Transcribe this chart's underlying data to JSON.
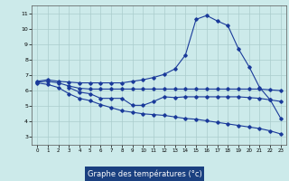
{
  "title": "Graphe des températures (°c)",
  "bg_color": "#cceaea",
  "grid_color": "#aacccc",
  "line_color": "#1a3a9a",
  "label_bg": "#1a4080",
  "label_fg": "#ffffff",
  "xlim": [
    -0.5,
    23.5
  ],
  "ylim": [
    2.5,
    11.5
  ],
  "xticks": [
    0,
    1,
    2,
    3,
    4,
    5,
    6,
    7,
    8,
    9,
    10,
    11,
    12,
    13,
    14,
    15,
    16,
    17,
    18,
    19,
    20,
    21,
    22,
    23
  ],
  "yticks": [
    3,
    4,
    5,
    6,
    7,
    8,
    9,
    10,
    11
  ],
  "line1_x": [
    0,
    1,
    2,
    3,
    4,
    5,
    6,
    7,
    8,
    9,
    10,
    11,
    12,
    13,
    14,
    15,
    16,
    17,
    18,
    19,
    20,
    21,
    22,
    23
  ],
  "line1_y": [
    6.6,
    6.7,
    6.6,
    6.55,
    6.5,
    6.5,
    6.5,
    6.5,
    6.5,
    6.6,
    6.7,
    6.85,
    7.05,
    7.4,
    8.3,
    10.6,
    10.85,
    10.5,
    10.2,
    8.7,
    7.55,
    6.2,
    5.4,
    4.2
  ],
  "line2_x": [
    3,
    4,
    5,
    6,
    7,
    8,
    9,
    10,
    11,
    12,
    13,
    14,
    15,
    16,
    17,
    18,
    19,
    20,
    21,
    22,
    23
  ],
  "line2_y": [
    6.2,
    5.9,
    5.8,
    5.5,
    5.5,
    5.5,
    5.05,
    5.05,
    5.3,
    5.6,
    5.55,
    5.6,
    5.6,
    5.6,
    5.6,
    5.6,
    5.6,
    5.55,
    5.5,
    5.4,
    5.3
  ],
  "line3_x": [
    0,
    1,
    2,
    3,
    4,
    5,
    6,
    7,
    8,
    9,
    10,
    11,
    12,
    13,
    14,
    15,
    16,
    17,
    18,
    19,
    20,
    21,
    22,
    23
  ],
  "line3_y": [
    6.55,
    6.6,
    6.5,
    6.3,
    6.15,
    6.1,
    6.1,
    6.1,
    6.1,
    6.1,
    6.1,
    6.1,
    6.1,
    6.1,
    6.1,
    6.1,
    6.1,
    6.1,
    6.1,
    6.1,
    6.1,
    6.1,
    6.05,
    6.0
  ],
  "line4_x": [
    0,
    1,
    2,
    3,
    4,
    5,
    6,
    7,
    8,
    9,
    10,
    11,
    12,
    13,
    14,
    15,
    16,
    17,
    18,
    19,
    20,
    21,
    22,
    23
  ],
  "line4_y": [
    6.5,
    6.4,
    6.2,
    5.8,
    5.5,
    5.35,
    5.1,
    4.9,
    4.7,
    4.6,
    4.5,
    4.45,
    4.4,
    4.3,
    4.2,
    4.15,
    4.05,
    3.95,
    3.85,
    3.75,
    3.65,
    3.55,
    3.4,
    3.2
  ]
}
